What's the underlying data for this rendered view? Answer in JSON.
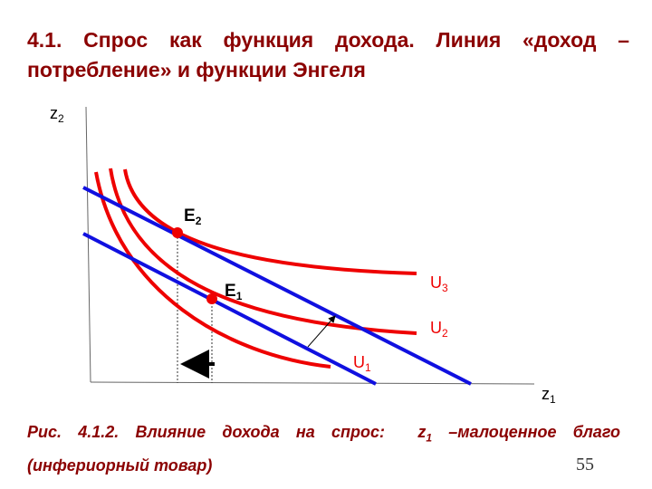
{
  "title": "4.1. Спрос как функция дохода. Линия «доход – потребление» и функции Энгеля",
  "axes": {
    "y": {
      "base": "z",
      "sub": "2"
    },
    "x": {
      "base": "z",
      "sub": "1"
    }
  },
  "points": [
    {
      "base": "E",
      "sub": "2"
    },
    {
      "base": "E",
      "sub": "1"
    }
  ],
  "curves": [
    {
      "base": "U",
      "sub": "3"
    },
    {
      "base": "U",
      "sub": "2"
    },
    {
      "base": "U",
      "sub": "1"
    }
  ],
  "caption": {
    "lead": "Рис. 4.1.2. Влияние дохода на спрос:",
    "var": "z",
    "sub": "1",
    "rest": "–малоценное благо (инфериорный товар)"
  },
  "page_number": "55"
}
